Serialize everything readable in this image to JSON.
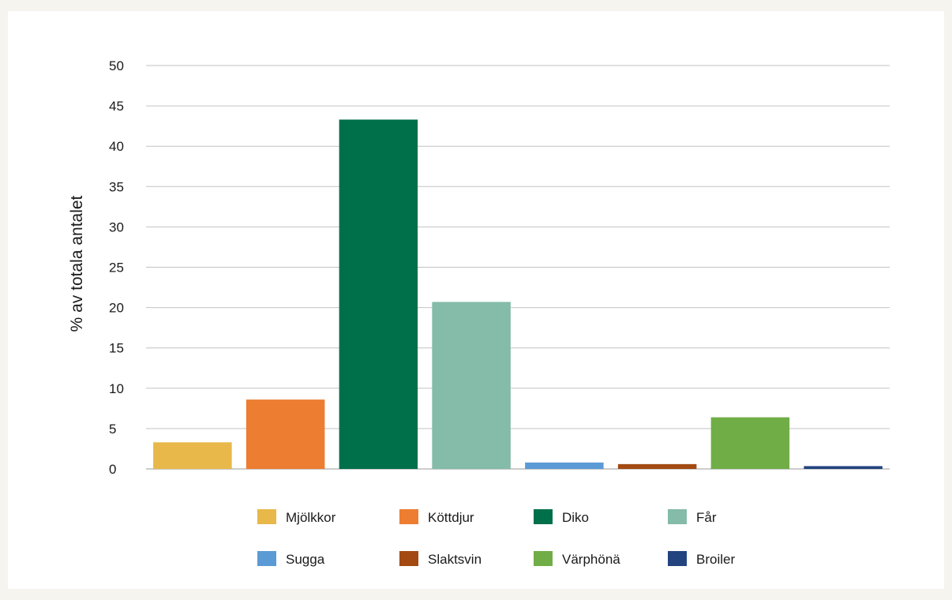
{
  "chart_data": {
    "type": "bar",
    "title": "",
    "xlabel": "",
    "ylabel": "% av totala antalet",
    "ylim": [
      0,
      50
    ],
    "yticks": [
      0,
      5,
      10,
      15,
      20,
      25,
      30,
      35,
      40,
      45,
      50
    ],
    "grid": true,
    "legend_position": "bottom",
    "categories": [
      "Mjölkkor",
      "Köttdjur",
      "Diko",
      "Får",
      "Sugga",
      "Slaktsvin",
      "Värphönä",
      "Broiler"
    ],
    "values": [
      3.3,
      8.6,
      43.3,
      20.7,
      0.8,
      0.6,
      6.4,
      0.35
    ],
    "colors": [
      "#e8b84a",
      "#ed7d31",
      "#00704a",
      "#84bba9",
      "#5b9bd5",
      "#a24a12",
      "#70ad47",
      "#244480"
    ]
  }
}
